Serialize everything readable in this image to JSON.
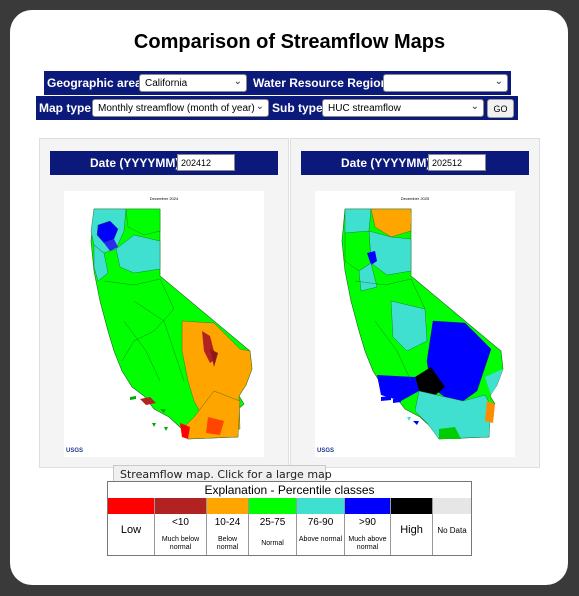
{
  "page": {
    "title": "Comparison of Streamflow Maps"
  },
  "controls": {
    "geographic_area_label": "Geographic area",
    "geographic_area_value": "California",
    "water_resource_region_label": "Water Resource Region",
    "water_resource_region_value": "",
    "map_type_label": "Map type",
    "map_type_value": "Monthly streamflow (month of year)",
    "sub_type_label": "Sub type",
    "sub_type_value": "HUC streamflow",
    "go_label": "GO"
  },
  "left_map": {
    "date_label": "Date (YYYYMM)",
    "date_value": "202412",
    "map_title": "December 2024",
    "agency": "USGS"
  },
  "right_map": {
    "date_label": "Date (YYYYMM)",
    "date_value": "202512",
    "map_title": "December 2025",
    "agency": "USGS"
  },
  "tooltip": "Streamflow map. Click for a large map",
  "legend": {
    "title": "Explanation - Percentile classes",
    "low_label": "Low",
    "high_label": "High",
    "classes": [
      {
        "range": ">=?",
        "desc": "",
        "color": "#ff0000"
      },
      {
        "range": "<10",
        "desc": "Much below normal",
        "color": "#b22222"
      },
      {
        "range": "10-24",
        "desc": "Below normal",
        "color": "#ffa500"
      },
      {
        "range": "25-75",
        "desc": "Normal",
        "color": "#00ff00"
      },
      {
        "range": "76-90",
        "desc": "Above normal",
        "color": "#40e0d0"
      },
      {
        "range": ">90",
        "desc": "Much above normal",
        "color": "#0000ff"
      },
      {
        "range": "",
        "desc": "",
        "color": "#000000"
      },
      {
        "range": "",
        "desc": "No Data",
        "color": "#e6e6e6"
      }
    ]
  },
  "colors": {
    "nav_bar": "#0b1a7a",
    "much_below": "#b22222",
    "below": "#ffa500",
    "normal": "#00ff00",
    "above": "#40e0d0",
    "much_above": "#0000ff",
    "high": "#000000"
  }
}
